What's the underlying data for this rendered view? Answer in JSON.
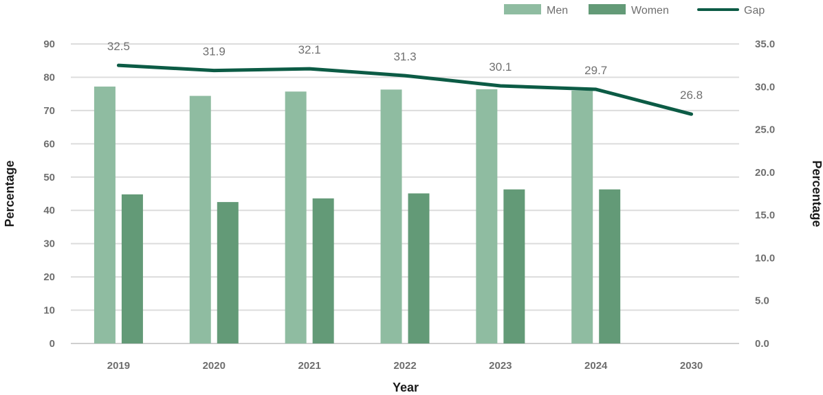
{
  "chart_data": {
    "type": "bar",
    "categories": [
      "2019",
      "2020",
      "2021",
      "2022",
      "2023",
      "2024",
      "2030"
    ],
    "series": [
      {
        "name": "Men",
        "type": "bar",
        "axis": "left",
        "color": "#8fbca1",
        "values": [
          77.2,
          74.4,
          75.7,
          76.3,
          76.4,
          76.0,
          null
        ]
      },
      {
        "name": "Women",
        "type": "bar",
        "axis": "left",
        "color": "#639a77",
        "values": [
          44.8,
          42.5,
          43.6,
          45.1,
          46.3,
          46.3,
          null
        ]
      },
      {
        "name": "Gap",
        "type": "line",
        "axis": "right",
        "color": "#0c5b45",
        "values": [
          32.5,
          31.9,
          32.1,
          31.3,
          30.1,
          29.7,
          26.8
        ],
        "labels": [
          "32.5",
          "31.9",
          "32.1",
          "31.3",
          "30.1",
          "29.7",
          "26.8"
        ]
      }
    ],
    "xlabel": "Year",
    "ylabel": "Percentage",
    "y2label": "Percentage",
    "ylim": [
      0,
      90
    ],
    "y2lim": [
      0,
      35
    ],
    "yticks": [
      0,
      10,
      20,
      30,
      40,
      50,
      60,
      70,
      80,
      90
    ],
    "y2ticks": [
      "0.0",
      "5.0",
      "10.0",
      "15.0",
      "20.0",
      "25.0",
      "30.0",
      "35.0"
    ],
    "grid": true,
    "legend_position": "top-right"
  }
}
